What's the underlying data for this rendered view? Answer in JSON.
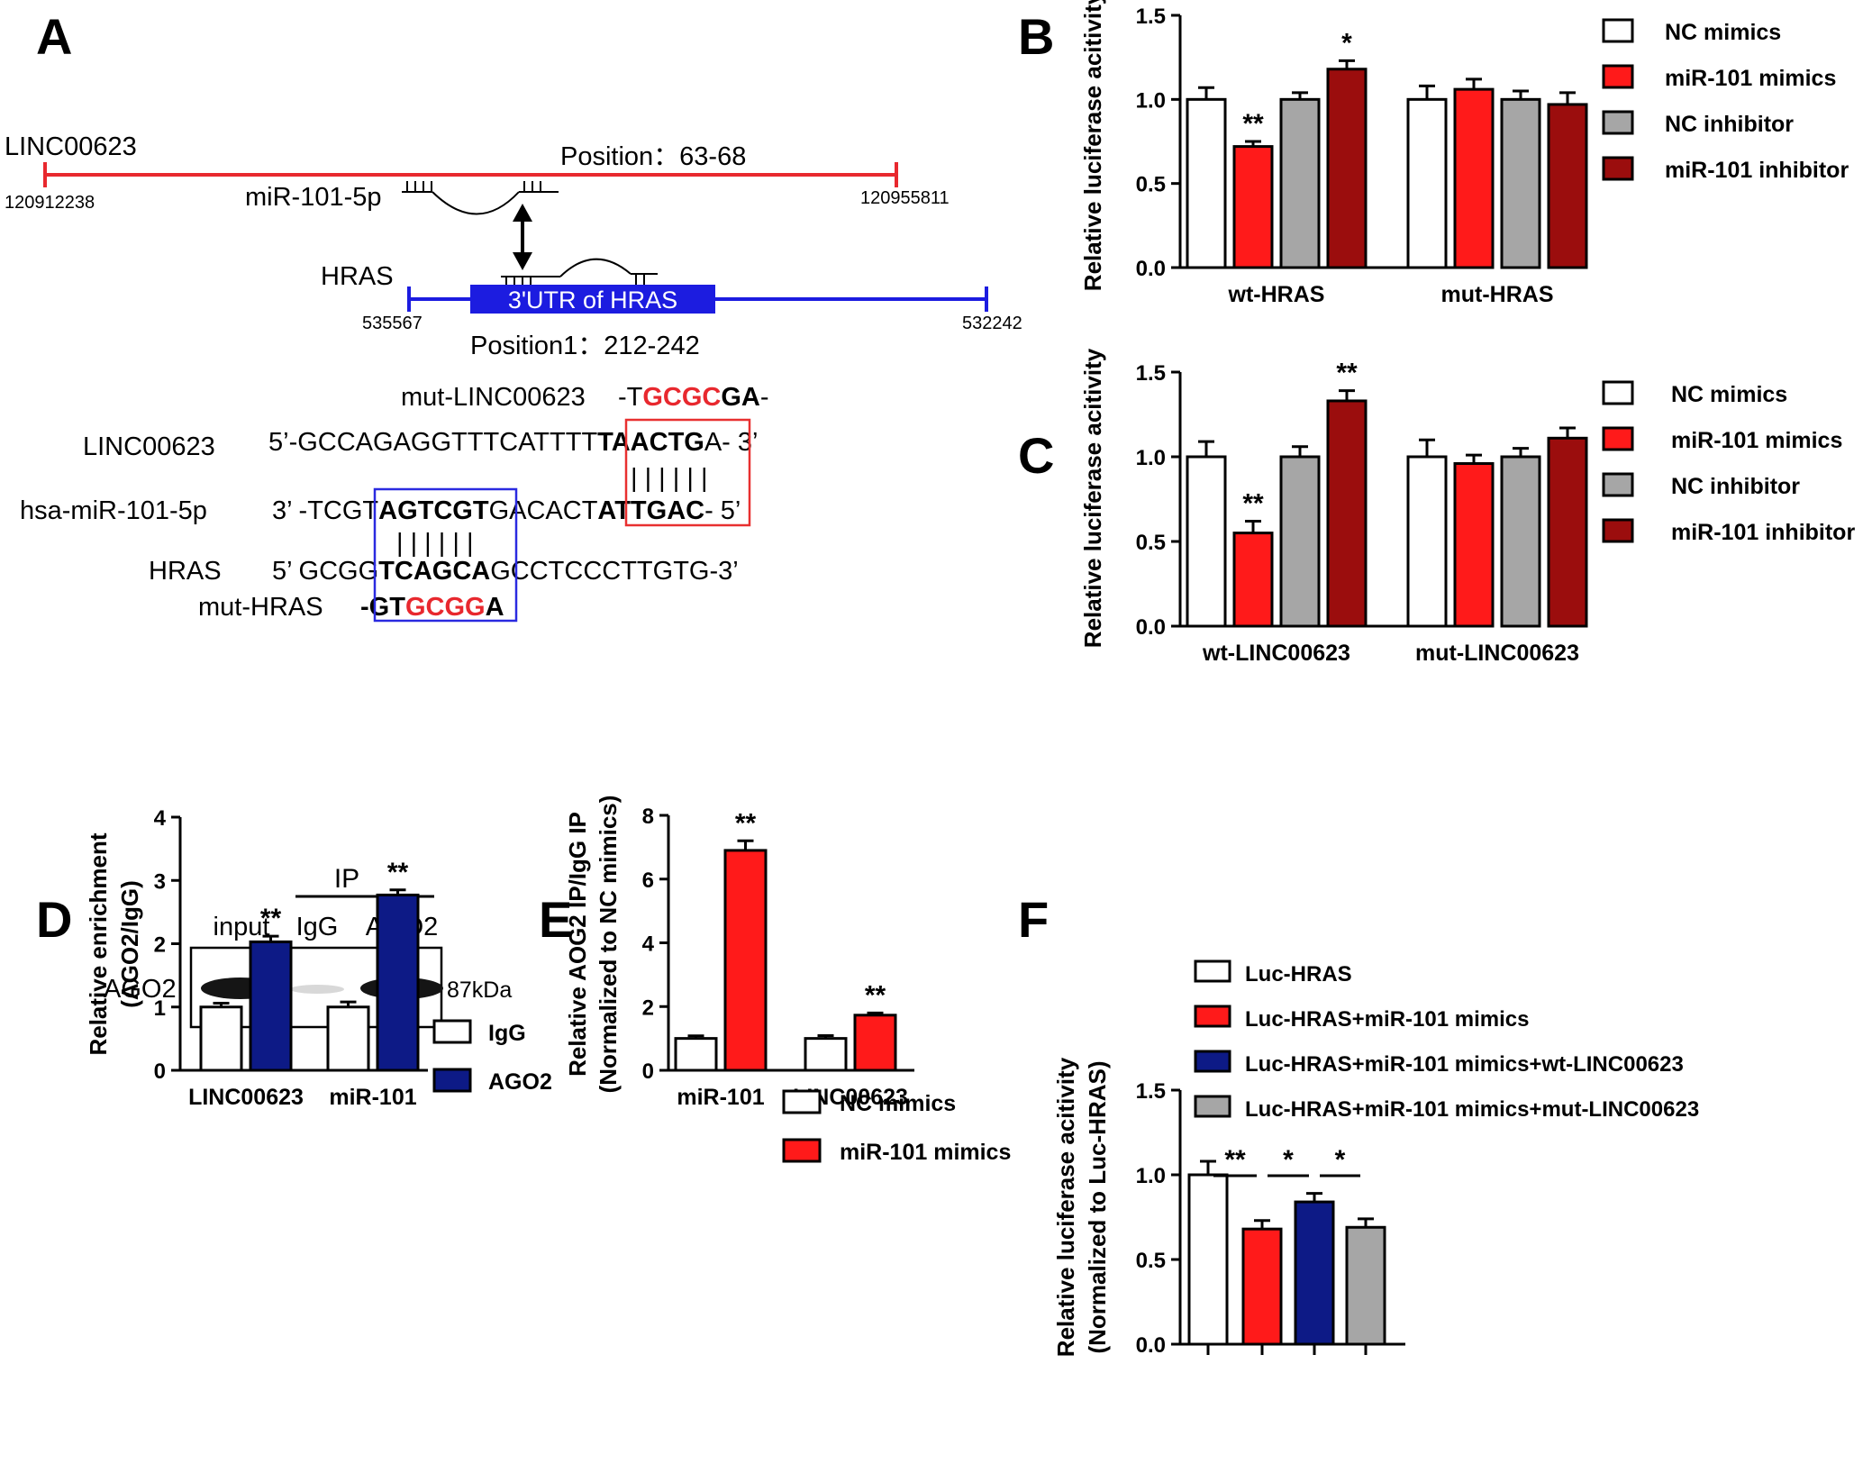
{
  "colors": {
    "white_bar": "#ffffff",
    "red": "#ff1a1a",
    "gray": "#a6a6a6",
    "dark_red": "#9b0d0d",
    "navy": "#0d1a86",
    "linc_line": "#e8282e",
    "hras_line": "#1c1ce0",
    "box_red": "#e83030",
    "box_blue": "#2a2ae0",
    "seq_red": "#e8282e",
    "text": "#111111"
  },
  "panelA": {
    "label": "A",
    "linc_name": "LINC00623",
    "linc_start": "120912238",
    "linc_end": "120955811",
    "position_label": "Position：63-68",
    "mir_name": "miR-101-5p",
    "hras_name": "HRAS",
    "utr_label": "3'UTR of HRAS",
    "hras_start": "535567",
    "hras_end": "532242",
    "position1_label": "Position1：212-242",
    "seq": {
      "mut_linc_label": "mut-LINC00623",
      "mut_linc_pre": "-T",
      "mut_linc_red": "GCGC",
      "mut_linc_bold": "GA",
      "mut_linc_post": "-",
      "linc_label": "LINC00623",
      "linc_pre": "5’-GCCAGAGGTTTCATTTT",
      "linc_bold": "TAACTG",
      "linc_post": "A- 3’",
      "mir_label": "hsa-miR-101-5p",
      "mir_pre": "3’ -TCGT",
      "mir_bold1": "AGTCGT",
      "mir_mid": "GACACT",
      "mir_bold2": "ATTGAC",
      "mir_post": "- 5’",
      "hras_label": "HRAS",
      "hras_pre": "5’ GCGG",
      "hras_bold": "TCAGCA",
      "hras_post": "GCCTCCCTTGTG-3’",
      "mut_hras_label": "mut-HRAS",
      "mut_hras_pre": "-G",
      "mut_hras_bold1": "T",
      "mut_hras_red": "GCGG",
      "mut_hras_bold2": "A",
      "pairs_top": "| | | | | |",
      "pairs_bottom": "| | | | | |"
    }
  },
  "panelD_blot": {
    "ip_label": "IP",
    "lanes": [
      "input",
      "IgG",
      "AGO2"
    ],
    "protein": "AGO2",
    "size": "87kDa"
  },
  "chart_data": [
    {
      "id": "B",
      "type": "bar",
      "label": "B",
      "ylabel": "Relative luciferase acitivity",
      "xlabel": "",
      "ylim": [
        0,
        1.5
      ],
      "yticks": [
        "0.0",
        "0.5",
        "1.0",
        "1.5"
      ],
      "categories": [
        "wt-HRAS",
        "mut-HRAS"
      ],
      "legend_position": "right",
      "grid": false,
      "series": [
        {
          "name": "NC mimics",
          "values": [
            1.0,
            1.0
          ],
          "errors": [
            0.07,
            0.08
          ]
        },
        {
          "name": "miR-101 mimics",
          "values": [
            0.72,
            1.06
          ],
          "errors": [
            0.03,
            0.06
          ]
        },
        {
          "name": "NC inhibitor",
          "values": [
            1.0,
            1.0
          ],
          "errors": [
            0.04,
            0.05
          ]
        },
        {
          "name": "miR-101 inhibitor",
          "values": [
            1.18,
            0.97
          ],
          "errors": [
            0.05,
            0.07
          ]
        }
      ],
      "annotations": [
        {
          "text": "**",
          "category": 0,
          "series": 1
        },
        {
          "text": "*",
          "category": 0,
          "series": 3
        }
      ]
    },
    {
      "id": "C",
      "type": "bar",
      "label": "C",
      "ylabel": "Relative luciferase acitivity",
      "xlabel": "",
      "ylim": [
        0,
        1.5
      ],
      "yticks": [
        "0.0",
        "0.5",
        "1.0",
        "1.5"
      ],
      "categories": [
        "wt-LINC00623",
        "mut-LINC00623"
      ],
      "legend_position": "right",
      "grid": false,
      "series": [
        {
          "name": "NC mimics",
          "values": [
            1.0,
            1.0
          ],
          "errors": [
            0.09,
            0.1
          ]
        },
        {
          "name": "miR-101 mimics",
          "values": [
            0.55,
            0.96
          ],
          "errors": [
            0.07,
            0.05
          ]
        },
        {
          "name": "NC inhibitor",
          "values": [
            1.0,
            1.0
          ],
          "errors": [
            0.06,
            0.05
          ]
        },
        {
          "name": "miR-101 inhibitor",
          "values": [
            1.33,
            1.11
          ],
          "errors": [
            0.06,
            0.06
          ]
        }
      ],
      "annotations": [
        {
          "text": "**",
          "category": 0,
          "series": 1
        },
        {
          "text": "**",
          "category": 0,
          "series": 3
        }
      ]
    },
    {
      "id": "D",
      "type": "bar",
      "label": "D",
      "ylabel": "Relative enrichment",
      "ylabel2": "(AGO2/IgG)",
      "xlabel": "",
      "ylim": [
        0,
        4
      ],
      "yticks": [
        "0",
        "1",
        "2",
        "3",
        "4"
      ],
      "categories": [
        "LINC00623",
        "miR-101"
      ],
      "legend_position": "top-right",
      "grid": false,
      "series": [
        {
          "name": "IgG",
          "values": [
            1.0,
            1.0
          ],
          "errors": [
            0.06,
            0.08
          ]
        },
        {
          "name": "AGO2",
          "values": [
            2.03,
            2.77
          ],
          "errors": [
            0.09,
            0.08
          ]
        }
      ],
      "annotations": [
        {
          "text": "**",
          "category": 0,
          "series": 1
        },
        {
          "text": "**",
          "category": 1,
          "series": 1
        }
      ]
    },
    {
      "id": "E",
      "type": "bar",
      "label": "E",
      "ylabel": "Relative AOG2 IP/IgG IP",
      "ylabel2": "(Normalized to NC mimics)",
      "xlabel": "",
      "ylim": [
        0,
        8
      ],
      "yticks": [
        "0",
        "2",
        "4",
        "6",
        "8"
      ],
      "categories": [
        "miR-101",
        "LINC00623"
      ],
      "legend_position": "top-right",
      "grid": false,
      "series": [
        {
          "name": "NC mimics",
          "values": [
            1.0,
            1.0
          ],
          "errors": [
            0.08,
            0.09
          ]
        },
        {
          "name": "miR-101 mimics",
          "values": [
            6.9,
            1.73
          ],
          "errors": [
            0.3,
            0.07
          ]
        }
      ],
      "annotations": [
        {
          "text": "**",
          "category": 0,
          "series": 1
        },
        {
          "text": "**",
          "category": 1,
          "series": 1
        }
      ]
    },
    {
      "id": "F",
      "type": "bar",
      "label": "F",
      "ylabel": "Relative luciferase acitivity",
      "ylabel2": "(Normalized to Luc-HRAS)",
      "xlabel": "",
      "ylim": [
        0,
        1.5
      ],
      "yticks": [
        "0.0",
        "0.5",
        "1.0",
        "1.5"
      ],
      "categories": [
        "Luc-HRAS",
        "Luc-HRAS+miR-101 mimics",
        "Luc-HRAS+miR-101 mimics+wt-LINC00623",
        "Luc-HRAS+miR-101 mimics+mut-LINC00623"
      ],
      "legend_position": "top",
      "grid": false,
      "values": [
        1.0,
        0.68,
        0.84,
        0.69
      ],
      "errors": [
        0.08,
        0.05,
        0.05,
        0.05
      ],
      "comparisons": [
        {
          "from": 0,
          "to": 1,
          "text": "**"
        },
        {
          "from": 1,
          "to": 2,
          "text": "*"
        },
        {
          "from": 2,
          "to": 3,
          "text": "*"
        }
      ]
    }
  ]
}
